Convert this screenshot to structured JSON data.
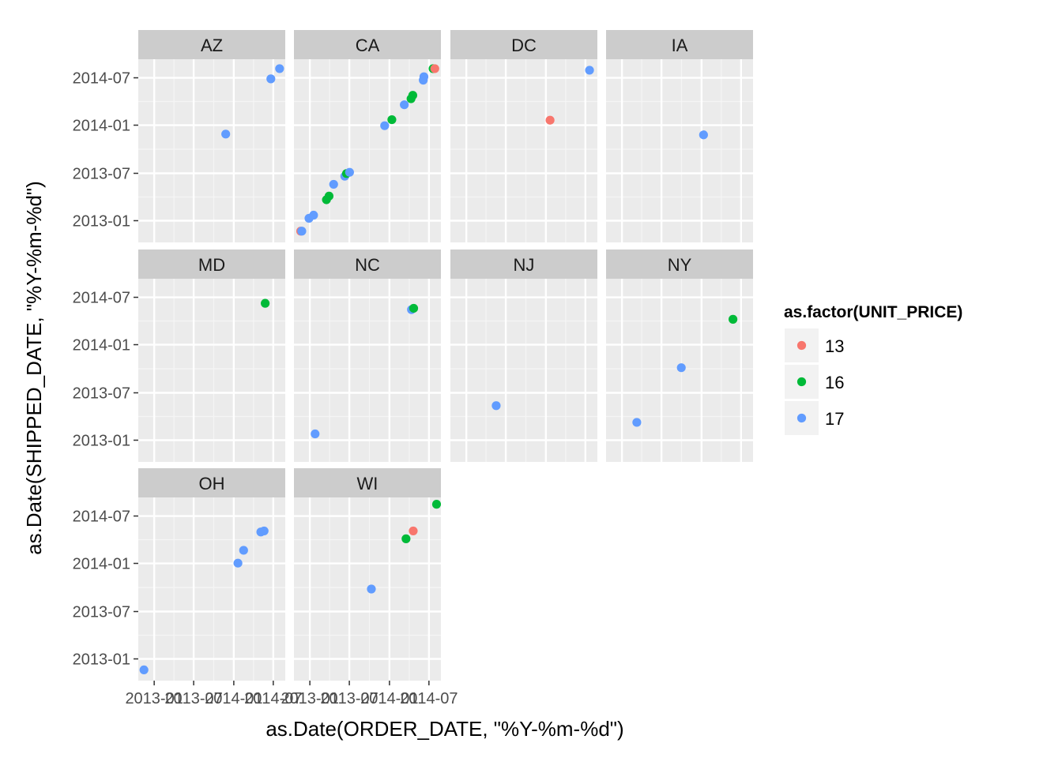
{
  "chart_data": {
    "type": "scatter",
    "facet_by": "state",
    "facets": [
      "AZ",
      "CA",
      "DC",
      "IA",
      "MD",
      "NC",
      "NJ",
      "NY",
      "OH",
      "WI"
    ],
    "ncol": 4,
    "xlabel": "as.Date(ORDER_DATE, \"%Y-%m-%d\")",
    "ylabel": "as.Date(SHIPPED_DATE, \"%Y-%m-%d\")",
    "xlim": [
      "2012-10-20",
      "2014-08-25"
    ],
    "ylim": [
      "2012-10-10",
      "2014-09-10"
    ],
    "x_ticks": [
      "2013-01",
      "2013-07",
      "2014-01",
      "2014-07"
    ],
    "y_ticks": [
      "2013-01",
      "2013-07",
      "2014-01",
      "2014-07"
    ],
    "grid": true,
    "legend": {
      "title": "as.factor(UNIT_PRICE)",
      "position": "right",
      "entries": [
        {
          "label": "13",
          "color": "#F8766D"
        },
        {
          "label": "16",
          "color": "#00BA38"
        },
        {
          "label": "17",
          "color": "#619CFF"
        }
      ]
    },
    "points": [
      {
        "facet": "AZ",
        "x": "2013-11-25",
        "y": "2013-11-28",
        "price": "17"
      },
      {
        "facet": "AZ",
        "x": "2014-06-20",
        "y": "2014-06-27",
        "price": "17"
      },
      {
        "facet": "AZ",
        "x": "2014-07-30",
        "y": "2014-08-05",
        "price": "17"
      },
      {
        "facet": "CA",
        "x": "2012-11-20",
        "y": "2012-11-22",
        "price": "13"
      },
      {
        "facet": "CA",
        "x": "2012-11-25",
        "y": "2012-11-22",
        "price": "17"
      },
      {
        "facet": "CA",
        "x": "2012-12-28",
        "y": "2013-01-10",
        "price": "17"
      },
      {
        "facet": "CA",
        "x": "2013-01-18",
        "y": "2013-01-22",
        "price": "17"
      },
      {
        "facet": "CA",
        "x": "2013-03-18",
        "y": "2013-03-22",
        "price": "16"
      },
      {
        "facet": "CA",
        "x": "2013-03-30",
        "y": "2013-04-05",
        "price": "16"
      },
      {
        "facet": "CA",
        "x": "2013-04-20",
        "y": "2013-05-20",
        "price": "17"
      },
      {
        "facet": "CA",
        "x": "2013-06-10",
        "y": "2013-06-20",
        "price": "17"
      },
      {
        "facet": "CA",
        "x": "2013-06-18",
        "y": "2013-06-30",
        "price": "16"
      },
      {
        "facet": "CA",
        "x": "2013-07-02",
        "y": "2013-07-05",
        "price": "17"
      },
      {
        "facet": "CA",
        "x": "2013-12-10",
        "y": "2013-12-30",
        "price": "17"
      },
      {
        "facet": "CA",
        "x": "2014-01-12",
        "y": "2014-01-22",
        "price": "16"
      },
      {
        "facet": "CA",
        "x": "2014-03-10",
        "y": "2014-03-20",
        "price": "17"
      },
      {
        "facet": "CA",
        "x": "2014-04-10",
        "y": "2014-04-12",
        "price": "16"
      },
      {
        "facet": "CA",
        "x": "2014-04-18",
        "y": "2014-04-25",
        "price": "16"
      },
      {
        "facet": "CA",
        "x": "2014-06-05",
        "y": "2014-06-22",
        "price": "17"
      },
      {
        "facet": "CA",
        "x": "2014-06-08",
        "y": "2014-07-05",
        "price": "17"
      },
      {
        "facet": "CA",
        "x": "2014-07-20",
        "y": "2014-08-05",
        "price": "16"
      },
      {
        "facet": "CA",
        "x": "2014-07-28",
        "y": "2014-08-05",
        "price": "13"
      },
      {
        "facet": "DC",
        "x": "2014-01-20",
        "y": "2014-01-20",
        "price": "13"
      },
      {
        "facet": "DC",
        "x": "2014-07-20",
        "y": "2014-07-30",
        "price": "17"
      },
      {
        "facet": "IA",
        "x": "2014-01-10",
        "y": "2013-11-25",
        "price": "17"
      },
      {
        "facet": "MD",
        "x": "2014-05-25",
        "y": "2014-06-08",
        "price": "16"
      },
      {
        "facet": "NC",
        "x": "2013-01-25",
        "y": "2013-01-25",
        "price": "17"
      },
      {
        "facet": "NC",
        "x": "2014-04-12",
        "y": "2014-05-15",
        "price": "17"
      },
      {
        "facet": "NC",
        "x": "2014-04-22",
        "y": "2014-05-20",
        "price": "16"
      },
      {
        "facet": "NJ",
        "x": "2013-05-18",
        "y": "2013-05-13",
        "price": "17"
      },
      {
        "facet": "NY",
        "x": "2013-03-10",
        "y": "2013-03-10",
        "price": "17"
      },
      {
        "facet": "NY",
        "x": "2013-09-30",
        "y": "2013-10-05",
        "price": "17"
      },
      {
        "facet": "NY",
        "x": "2014-05-25",
        "y": "2014-04-08",
        "price": "16"
      },
      {
        "facet": "OH",
        "x": "2012-11-15",
        "y": "2012-11-20",
        "price": "17"
      },
      {
        "facet": "OH",
        "x": "2014-01-20",
        "y": "2014-01-02",
        "price": "17"
      },
      {
        "facet": "OH",
        "x": "2014-02-15",
        "y": "2014-02-20",
        "price": "17"
      },
      {
        "facet": "OH",
        "x": "2014-05-05",
        "y": "2014-05-01",
        "price": "17"
      },
      {
        "facet": "OH",
        "x": "2014-05-20",
        "y": "2014-05-05",
        "price": "17"
      },
      {
        "facet": "WI",
        "x": "2013-10-10",
        "y": "2013-09-25",
        "price": "17"
      },
      {
        "facet": "WI",
        "x": "2014-03-18",
        "y": "2014-04-05",
        "price": "16"
      },
      {
        "facet": "WI",
        "x": "2014-04-20",
        "y": "2014-05-05",
        "price": "13"
      },
      {
        "facet": "WI",
        "x": "2014-08-05",
        "y": "2014-08-15",
        "price": "16"
      }
    ]
  }
}
